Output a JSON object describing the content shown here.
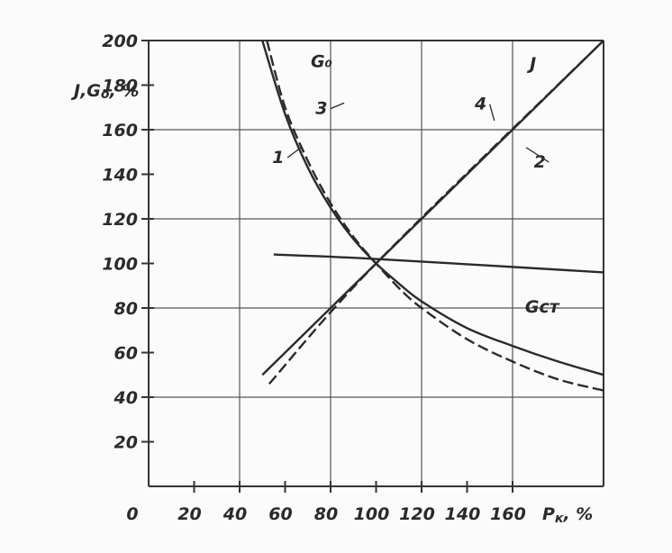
{
  "chart_data": {
    "type": "line",
    "xlabel": "P",
    "xlabel_sub": "к",
    "xlabel_unit": ", %",
    "ylabel": "J,G",
    "ylabel_sub": "о",
    "ylabel_unit": ", %",
    "xlim": [
      0,
      200
    ],
    "ylim": [
      0,
      200
    ],
    "x_ticks": [
      "0",
      "20",
      "40",
      "60",
      "80",
      "100",
      "120",
      "140",
      "160"
    ],
    "y_ticks": [
      "20",
      "40",
      "60",
      "80",
      "100",
      "120",
      "140",
      "160",
      "180",
      "200"
    ],
    "grid": true,
    "series": [
      {
        "name": "G₀ (1)",
        "style": "solid",
        "x": [
          50,
          60,
          70,
          80,
          90,
          100,
          110,
          120,
          140,
          160,
          180,
          200
        ],
        "y": [
          200,
          167,
          143,
          125,
          111,
          100,
          91,
          83,
          71,
          63,
          56,
          50
        ]
      },
      {
        "name": "G₀ (3)",
        "style": "dashed",
        "x": [
          52,
          60,
          70,
          80,
          90,
          100,
          110,
          120,
          140,
          160,
          180,
          200
        ],
        "y": [
          200,
          170,
          146,
          127,
          112,
          100,
          89,
          80,
          66,
          56,
          48,
          43
        ]
      },
      {
        "name": "J (4)",
        "style": "solid",
        "x": [
          50,
          100,
          200
        ],
        "y": [
          50,
          100,
          200
        ]
      },
      {
        "name": "J (2)",
        "style": "dashed",
        "x": [
          53,
          100,
          200
        ],
        "y": [
          46,
          100,
          200
        ]
      },
      {
        "name": "Gст",
        "style": "solid",
        "x": [
          55,
          100,
          200
        ],
        "y": [
          104,
          102,
          96
        ]
      }
    ],
    "annotations": [
      {
        "text": "G₀",
        "x": 76,
        "y": 188
      },
      {
        "text": "3",
        "x": 76,
        "y": 167
      },
      {
        "text": "1",
        "x": 57,
        "y": 145
      },
      {
        "text": "J",
        "x": 169,
        "y": 187
      },
      {
        "text": "4",
        "x": 146,
        "y": 169
      },
      {
        "text": "2",
        "x": 172,
        "y": 143
      },
      {
        "text": "Gст",
        "x": 173,
        "y": 78
      }
    ],
    "colors": {
      "line": "#2a2a2a",
      "grid": "#555555",
      "background": "#fbfbfb"
    }
  }
}
